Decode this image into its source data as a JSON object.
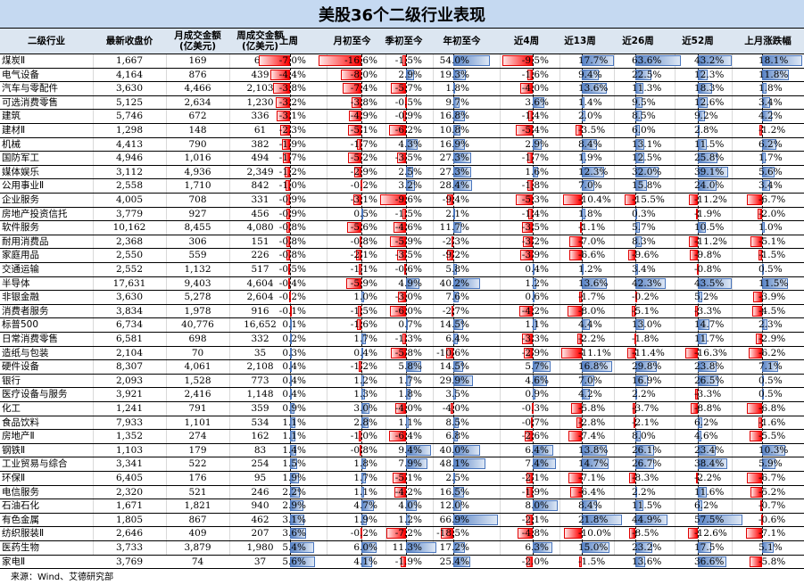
{
  "title": "美股36个二级行业表现",
  "headers": {
    "name": "二级行业",
    "close": "最新收盘价",
    "month_turnover_l1": "月成交金额",
    "month_turnover_l2": "(亿美元)",
    "week_turnover_l1": "周成交金额",
    "week_turnover_l2": "(亿美元)",
    "last_week": "上周",
    "mtd": "月初至今",
    "qtd": "季初至今",
    "ytd": "年初至今",
    "w4": "近4周",
    "w13": "近13周",
    "w26": "近26周",
    "w52": "近52周",
    "last_month": "上月涨跌幅"
  },
  "colors": {
    "title_bg": "#c5d9f1",
    "header_bg": "#dce6f1",
    "positive_bar": "#5b85c6",
    "negative_bar": "#ff0000"
  },
  "footer": "来源：Wind、艾德研究部",
  "rows": [
    {
      "name": "煤炭Ⅱ",
      "close": "1,667",
      "month_turnover": "169",
      "week_turnover": "69",
      "last_week": -7.0,
      "mtd": -16.6,
      "qtd": -1.5,
      "ytd": 54.0,
      "w4": -9.5,
      "w13": 17.7,
      "w26": 63.6,
      "w52": 43.2,
      "last_month": 18.1
    },
    {
      "name": "电气设备",
      "close": "4,164",
      "month_turnover": "876",
      "week_turnover": "439",
      "last_week": -4.4,
      "mtd": -8.0,
      "qtd": 2.9,
      "ytd": 19.3,
      "w4": -1.6,
      "w13": 9.4,
      "w26": 22.5,
      "w52": 12.3,
      "last_month": 11.8
    },
    {
      "name": "汽车与零配件",
      "close": "3,630",
      "month_turnover": "4,466",
      "week_turnover": "2,103",
      "last_week": -3.8,
      "mtd": -7.4,
      "qtd": -5.7,
      "ytd": 1.8,
      "w4": -4.0,
      "w13": 13.6,
      "w26": 11.3,
      "w52": 18.3,
      "last_month": 1.8
    },
    {
      "name": "可选消费零售",
      "close": "5,125",
      "month_turnover": "2,634",
      "week_turnover": "1,230",
      "last_week": -3.2,
      "mtd": -3.8,
      "qtd": -0.5,
      "ytd": 9.7,
      "w4": 3.6,
      "w13": 1.4,
      "w26": 9.5,
      "w52": 12.6,
      "last_month": 3.4
    },
    {
      "name": "建筑",
      "close": "5,746",
      "month_turnover": "672",
      "week_turnover": "336",
      "last_week": -3.1,
      "mtd": -4.9,
      "qtd": -0.9,
      "ytd": 16.8,
      "w4": -1.4,
      "w13": 2.0,
      "w26": 8.5,
      "w52": 9.2,
      "last_month": 4.2
    },
    {
      "name": "建材Ⅱ",
      "close": "1,298",
      "month_turnover": "148",
      "week_turnover": "61",
      "last_week": -2.3,
      "mtd": -5.1,
      "qtd": -6.2,
      "ytd": 10.8,
      "w4": -5.4,
      "w13": -3.5,
      "w26": 6.0,
      "w52": 2.8,
      "last_month": -1.2
    },
    {
      "name": "机械",
      "close": "4,413",
      "month_turnover": "790",
      "week_turnover": "382",
      "last_week": -1.9,
      "mtd": -1.7,
      "qtd": 4.3,
      "ytd": 16.9,
      "w4": 2.9,
      "w13": 8.4,
      "w26": 13.1,
      "w52": 11.5,
      "last_month": 6.2
    },
    {
      "name": "国防军工",
      "close": "4,946",
      "month_turnover": "1,016",
      "week_turnover": "494",
      "last_week": -1.7,
      "mtd": -5.2,
      "qtd": -3.5,
      "ytd": 27.3,
      "w4": -1.7,
      "w13": 1.9,
      "w26": 12.5,
      "w52": 25.8,
      "last_month": 1.7
    },
    {
      "name": "媒体娱乐",
      "close": "3,112",
      "month_turnover": "4,936",
      "week_turnover": "2,349",
      "last_week": -1.2,
      "mtd": -2.9,
      "qtd": 2.5,
      "ytd": 27.3,
      "w4": 1.6,
      "w13": 12.3,
      "w26": 32.0,
      "w52": 39.1,
      "last_month": 5.6
    },
    {
      "name": "公用事业Ⅱ",
      "close": "2,558",
      "month_turnover": "1,710",
      "week_turnover": "842",
      "last_week": -1.0,
      "mtd": -0.2,
      "qtd": 3.2,
      "ytd": 28.4,
      "w4": -1.8,
      "w13": 7.0,
      "w26": 15.8,
      "w52": 24.0,
      "last_month": 3.4
    },
    {
      "name": "企业服务",
      "close": "4,005",
      "month_turnover": "708",
      "week_turnover": "331",
      "last_week": -0.9,
      "mtd": -3.1,
      "qtd": -9.6,
      "ytd": -9.4,
      "w4": -5.3,
      "w13": -10.4,
      "w26": -15.5,
      "w52": -11.2,
      "last_month": -6.7
    },
    {
      "name": "房地产投资信托",
      "close": "3,779",
      "month_turnover": "927",
      "week_turnover": "456",
      "last_week": -0.9,
      "mtd": 0.5,
      "qtd": -1.5,
      "ytd": 2.1,
      "w4": -1.4,
      "w13": 1.8,
      "w26": 0.3,
      "w52": -1.9,
      "last_month": -2.0
    },
    {
      "name": "软件服务",
      "close": "10,162",
      "month_turnover": "8,455",
      "week_turnover": "4,080",
      "last_week": -0.8,
      "mtd": -5.6,
      "qtd": -4.6,
      "ytd": 11.7,
      "w4": -3.5,
      "w13": -1.1,
      "w26": 5.7,
      "w52": 10.5,
      "last_month": 1.0
    },
    {
      "name": "耐用消费品",
      "close": "2,368",
      "month_turnover": "306",
      "week_turnover": "151",
      "last_week": -0.8,
      "mtd": -0.8,
      "qtd": -5.9,
      "ytd": -2.3,
      "w4": -3.2,
      "w13": -7.0,
      "w26": 8.3,
      "w52": -11.2,
      "last_month": -5.1
    },
    {
      "name": "家庭用品",
      "close": "2,550",
      "month_turnover": "559",
      "week_turnover": "226",
      "last_week": -0.8,
      "mtd": -2.1,
      "qtd": -3.5,
      "ytd": -9.2,
      "w4": -3.9,
      "w13": -6.6,
      "w26": -9.6,
      "w52": -9.8,
      "last_month": -1.5
    },
    {
      "name": "交通运输",
      "close": "2,552",
      "month_turnover": "1,132",
      "week_turnover": "517",
      "last_week": -0.5,
      "mtd": -1.1,
      "qtd": -0.6,
      "ytd": 5.8,
      "w4": 0.4,
      "w13": 1.2,
      "w26": 3.4,
      "w52": -0.8,
      "last_month": 0.5
    },
    {
      "name": "半导体",
      "close": "17,631",
      "month_turnover": "9,403",
      "week_turnover": "4,604",
      "last_week": -0.4,
      "mtd": -5.9,
      "qtd": 4.9,
      "ytd": 40.2,
      "w4": 1.2,
      "w13": 13.6,
      "w26": 42.3,
      "w52": 43.5,
      "last_month": 11.5
    },
    {
      "name": "非银金融",
      "close": "3,630",
      "month_turnover": "5,278",
      "week_turnover": "2,604",
      "last_week": -0.2,
      "mtd": 1.0,
      "qtd": -3.0,
      "ytd": 7.6,
      "w4": 0.6,
      "w13": -1.7,
      "w26": -0.2,
      "w52": 5.2,
      "last_month": -3.9
    },
    {
      "name": "消费者服务",
      "close": "3,834",
      "month_turnover": "1,978",
      "week_turnover": "916",
      "last_week": -0.1,
      "mtd": -1.5,
      "qtd": -6.0,
      "ytd": -2.7,
      "w4": -4.2,
      "w13": -8.0,
      "w26": -5.1,
      "w52": -3.3,
      "last_month": -4.5
    },
    {
      "name": "标普500",
      "close": "6,734",
      "month_turnover": "40,776",
      "week_turnover": "16,652",
      "last_week": 0.1,
      "mtd": -1.6,
      "qtd": 0.7,
      "ytd": 14.5,
      "w4": 1.1,
      "w13": 4.4,
      "w26": 13.0,
      "w52": 14.7,
      "last_month": 2.3
    },
    {
      "name": "日常消费零售",
      "close": "6,581",
      "month_turnover": "698",
      "week_turnover": "332",
      "last_week": 0.2,
      "mtd": 1.7,
      "qtd": -1.3,
      "ytd": 6.4,
      "w4": -3.3,
      "w13": -2.2,
      "w26": -1.8,
      "w52": 11.7,
      "last_month": -2.9
    },
    {
      "name": "造纸与包装",
      "close": "2,104",
      "month_turnover": "70",
      "week_turnover": "35",
      "last_week": 0.3,
      "mtd": 0.4,
      "qtd": -5.8,
      "ytd": -10.6,
      "w4": -2.9,
      "w13": -11.1,
      "w26": -11.4,
      "w52": -16.3,
      "last_month": -6.2
    },
    {
      "name": "硬件设备",
      "close": "8,307",
      "month_turnover": "4,061",
      "week_turnover": "2,108",
      "last_week": 0.4,
      "mtd": -1.2,
      "qtd": 5.8,
      "ytd": 14.5,
      "w4": 5.7,
      "w13": 16.8,
      "w26": 29.8,
      "w52": 23.8,
      "last_month": 7.1
    },
    {
      "name": "银行",
      "close": "2,093",
      "month_turnover": "1,528",
      "week_turnover": "773",
      "last_week": 0.4,
      "mtd": 1.2,
      "qtd": 1.7,
      "ytd": 29.9,
      "w4": 4.6,
      "w13": 7.0,
      "w26": 16.9,
      "w52": 26.5,
      "last_month": 0.5
    },
    {
      "name": "医疗设备与服务",
      "close": "3,921",
      "month_turnover": "2,416",
      "week_turnover": "1,148",
      "last_week": 0.4,
      "mtd": 1.3,
      "qtd": 1.8,
      "ytd": 3.5,
      "w4": 0.9,
      "w13": 4.2,
      "w26": 2.2,
      "w52": -3.3,
      "last_month": 0.5
    },
    {
      "name": "化工",
      "close": "1,241",
      "month_turnover": "791",
      "week_turnover": "359",
      "last_week": 0.9,
      "mtd": 3.0,
      "qtd": -4.0,
      "ytd": -4.0,
      "w4": -0.3,
      "w13": -5.8,
      "w26": -3.7,
      "w52": -8.8,
      "last_month": -6.8
    },
    {
      "name": "食品饮料",
      "close": "7,933",
      "month_turnover": "1,101",
      "week_turnover": "534",
      "last_week": 1.1,
      "mtd": 2.8,
      "qtd": 1.1,
      "ytd": 8.5,
      "w4": -0.7,
      "w13": -2.8,
      "w26": -2.1,
      "w52": 6.2,
      "last_month": -1.6
    },
    {
      "name": "房地产Ⅱ",
      "close": "1,352",
      "month_turnover": "274",
      "week_turnover": "162",
      "last_week": 1.1,
      "mtd": -1.0,
      "qtd": -6.4,
      "ytd": 6.8,
      "w4": -2.6,
      "w13": -7.4,
      "w26": 8.0,
      "w52": 4.6,
      "last_month": -5.5
    },
    {
      "name": "钢铁Ⅱ",
      "close": "1,103",
      "month_turnover": "179",
      "week_turnover": "83",
      "last_week": 1.4,
      "mtd": -0.8,
      "qtd": 9.4,
      "ytd": 40.0,
      "w4": 6.4,
      "w13": 13.8,
      "w26": 26.1,
      "w52": 23.4,
      "last_month": 10.3
    },
    {
      "name": "工业贸易与综合",
      "close": "3,341",
      "month_turnover": "522",
      "week_turnover": "254",
      "last_week": 1.5,
      "mtd": 1.8,
      "qtd": 7.9,
      "ytd": 48.1,
      "w4": 7.4,
      "w13": 14.7,
      "w26": 26.7,
      "w52": 38.4,
      "last_month": 5.9
    },
    {
      "name": "环保Ⅱ",
      "close": "6,405",
      "month_turnover": "176",
      "week_turnover": "95",
      "last_week": 1.9,
      "mtd": 1.7,
      "qtd": -5.1,
      "ytd": 2.5,
      "w4": -2.1,
      "w13": -7.1,
      "w26": -8.3,
      "w52": -2.2,
      "last_month": -6.7
    },
    {
      "name": "电信服务",
      "close": "2,320",
      "month_turnover": "521",
      "week_turnover": "246",
      "last_week": 2.2,
      "mtd": 1.1,
      "qtd": -4.2,
      "ytd": 16.5,
      "w4": -1.9,
      "w13": -6.4,
      "w26": 2.2,
      "w52": 11.6,
      "last_month": -5.2
    },
    {
      "name": "石油石化",
      "close": "1,671",
      "month_turnover": "1,821",
      "week_turnover": "940",
      "last_week": 2.9,
      "mtd": 4.7,
      "qtd": 4.0,
      "ytd": 12.0,
      "w4": 8.0,
      "w13": 8.4,
      "w26": 11.5,
      "w52": 6.2,
      "last_month": -0.7
    },
    {
      "name": "有色金属",
      "close": "1,805",
      "month_turnover": "867",
      "week_turnover": "462",
      "last_week": 3.1,
      "mtd": 1.9,
      "qtd": 1.2,
      "ytd": 66.9,
      "w4": -2.1,
      "w13": 21.8,
      "w26": 44.9,
      "w52": 57.5,
      "last_month": -0.6
    },
    {
      "name": "纺织服装Ⅱ",
      "close": "2,646",
      "month_turnover": "409",
      "week_turnover": "207",
      "last_week": 3.6,
      "mtd": -0.2,
      "qtd": -7.2,
      "ytd": -18.5,
      "w4": -4.8,
      "w13": -10.0,
      "w26": -8.5,
      "w52": -12.6,
      "last_month": -7.1
    },
    {
      "name": "医药生物",
      "close": "3,733",
      "month_turnover": "3,879",
      "week_turnover": "1,980",
      "last_week": 5.4,
      "mtd": 6.0,
      "qtd": 11.3,
      "ytd": 17.2,
      "w4": 6.3,
      "w13": 15.0,
      "w26": 23.2,
      "w52": 17.5,
      "last_month": 5.1
    },
    {
      "name": "家电Ⅱ",
      "close": "3,769",
      "month_turnover": "74",
      "week_turnover": "37",
      "last_week": 5.6,
      "mtd": 4.1,
      "qtd": -1.9,
      "ytd": 25.4,
      "w4": -2.0,
      "w13": -1.5,
      "w26": 13.6,
      "w52": 36.6,
      "last_month": -5.8
    }
  ]
}
